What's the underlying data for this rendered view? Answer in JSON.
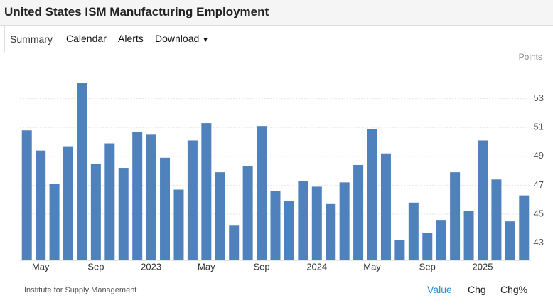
{
  "header": {
    "title": "United States ISM Manufacturing Employment"
  },
  "tabs": [
    "Summary",
    "Calendar",
    "Alerts",
    "Download"
  ],
  "footer": {
    "source": "Institute for Supply Management",
    "modes": [
      "Value",
      "Chg",
      "Chg%"
    ]
  },
  "chart_data": {
    "type": "bar",
    "unit": "Points",
    "color": "#4f81bd",
    "categories": [
      null,
      "May",
      null,
      null,
      null,
      "Sep",
      null,
      null,
      null,
      "2023",
      null,
      null,
      null,
      "May",
      null,
      null,
      null,
      "Sep",
      null,
      null,
      null,
      "2024",
      null,
      null,
      null,
      "May",
      null,
      null,
      null,
      "Sep",
      null,
      null,
      null,
      "2025",
      null,
      null,
      null
    ],
    "values": [
      50.8,
      49.4,
      47.1,
      49.7,
      54.1,
      48.5,
      49.9,
      48.2,
      50.7,
      50.5,
      48.9,
      46.7,
      50.1,
      51.3,
      47.9,
      44.2,
      48.3,
      51.1,
      46.6,
      45.9,
      47.3,
      46.9,
      45.7,
      47.2,
      48.4,
      50.9,
      49.2,
      43.2,
      45.8,
      43.7,
      44.6,
      47.9,
      45.2,
      50.1,
      47.4,
      44.5,
      46.3
    ],
    "ylim": [
      41.8,
      54.9
    ],
    "yticks": [
      43,
      45,
      47,
      49,
      51,
      53
    ],
    "grid": true
  }
}
